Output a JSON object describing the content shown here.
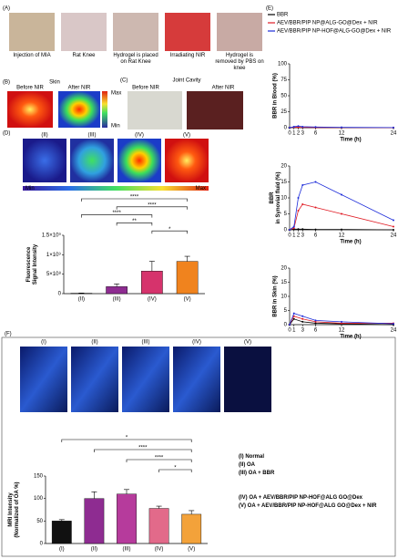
{
  "panel_a": {
    "label": "(A)",
    "captions": [
      "Injection of MIA",
      "Rat Knee",
      "Hydrogel is placed on Rat Knee",
      "Irradiating NIR",
      "Hydrogel is removed by PBS on knee"
    ]
  },
  "panel_b": {
    "label": "(B)",
    "title": "Skin",
    "before": "Before NIR",
    "after": "After NIR",
    "scale_max": "Max",
    "scale_min": "Min"
  },
  "panel_c": {
    "label": "(C)",
    "title": "Joint Cavity",
    "before": "Before NIR",
    "after": "After NIR"
  },
  "panel_d": {
    "label": "(D)",
    "image_labels": [
      "(II)",
      "(III)",
      "(IV)",
      "(V)"
    ],
    "scale_min": "Min",
    "scale_max": "Max",
    "chart": {
      "type": "bar",
      "ylabel": [
        "Fluorescence",
        "Signal Intensity"
      ],
      "categories": [
        "(II)",
        "(III)",
        "(IV)",
        "(V)"
      ],
      "values": [
        10000000,
        180000000,
        580000000,
        830000000
      ],
      "errors": [
        5000000,
        70000000,
        250000000,
        130000000
      ],
      "colors": [
        "#111111",
        "#8e2c91",
        "#d6336c",
        "#f0831e"
      ],
      "ylim": [
        0,
        1500000000
      ],
      "yticks": [
        0,
        {
          "value": 500000000,
          "label": "5×10⁸"
        },
        {
          "value": 1000000000,
          "label": "1×10⁹"
        },
        {
          "value": 1500000000,
          "label": "1.5×10⁹"
        }
      ],
      "significance": [
        {
          "pair": [
            "(II)",
            "(V)"
          ],
          "label": "****"
        },
        {
          "pair": [
            "(III)",
            "(V)"
          ],
          "label": "****"
        },
        {
          "pair": [
            "(II)",
            "(IV)"
          ],
          "label": "****"
        },
        {
          "pair": [
            "(III)",
            "(IV)"
          ],
          "label": "**"
        },
        {
          "pair": [
            "(IV)",
            "(V)"
          ],
          "label": "*"
        }
      ]
    }
  },
  "panel_e": {
    "label": "(E)",
    "legend": [
      {
        "name": "BBR",
        "color": "#000000"
      },
      {
        "name": "AEV/BBR/PIP NP@ALG-GO@Dex + NIR",
        "color": "#e01b24"
      },
      {
        "name": "AEV/BBR/PIP NP-HOF@ALG-GO@Dex + NIR",
        "color": "#1c2bd9"
      }
    ],
    "charts": [
      {
        "type": "line",
        "ylabel": [
          "BBR in Blood (%)"
        ],
        "xlabel": "Time (h)",
        "x": [
          0,
          1,
          2,
          3,
          6,
          12,
          24
        ],
        "xlim": [
          0,
          24
        ],
        "xticks": [
          0,
          1,
          2,
          3,
          6,
          12,
          24
        ],
        "ylim": [
          0,
          100
        ],
        "yticks": [
          0,
          25,
          50,
          75,
          100
        ],
        "series": [
          {
            "values": [
              0,
              0.5,
              0.3,
              0.2,
              0.1,
              0.1,
              0
            ]
          },
          {
            "values": [
              0,
              0.8,
              0.6,
              0.5,
              0.3,
              0.2,
              0.1
            ]
          },
          {
            "values": [
              0,
              1.5,
              2.5,
              1.5,
              1,
              0.5,
              0.2
            ]
          }
        ]
      },
      {
        "type": "line",
        "ylabel": [
          "BBR",
          "in Synovial fluid (%)"
        ],
        "xlabel": "Time (h)",
        "x": [
          0,
          1,
          2,
          3,
          6,
          12,
          24
        ],
        "xlim": [
          0,
          24
        ],
        "xticks": [
          0,
          1,
          2,
          3,
          6,
          12,
          24
        ],
        "ylim": [
          0,
          20
        ],
        "yticks": [
          0,
          5,
          10,
          15,
          20
        ],
        "series": [
          {
            "values": [
              0,
              0.2,
              0.2,
              0.2,
              0.1,
              0.1,
              0
            ]
          },
          {
            "values": [
              0,
              0.5,
              6,
              8,
              7,
              5,
              1
            ]
          },
          {
            "values": [
              0,
              1,
              10,
              14,
              15,
              11,
              3
            ]
          }
        ]
      },
      {
        "type": "line",
        "ylabel": [
          "BBR in Skin (%)"
        ],
        "xlabel": "Time (h)",
        "x": [
          0,
          1,
          3,
          6,
          12,
          24
        ],
        "xlim": [
          0,
          24
        ],
        "xticks": [
          0,
          1,
          3,
          6,
          12,
          24
        ],
        "ylim": [
          0,
          20
        ],
        "yticks": [
          0,
          5,
          10,
          15,
          20
        ],
        "series": [
          {
            "values": [
              0,
              2,
              1,
              0.5,
              0.3,
              0
            ]
          },
          {
            "values": [
              0,
              3,
              2,
              1,
              0.5,
              0.5
            ]
          },
          {
            "values": [
              0,
              4,
              3,
              1.5,
              1,
              0.3
            ]
          }
        ]
      }
    ]
  },
  "panel_f": {
    "label": "(F)",
    "image_labels": [
      "(I)",
      "(II)",
      "(III)",
      "(IV)",
      "(V)"
    ],
    "chart": {
      "type": "bar",
      "ylabel": [
        "MRI Intensity",
        "(Normalized of OA %)"
      ],
      "categories": [
        "(I)",
        "(II)",
        "(III)",
        "(IV)",
        "(V)"
      ],
      "values": [
        50,
        100,
        110,
        78,
        65
      ],
      "errors": [
        3,
        15,
        10,
        5,
        8
      ],
      "colors": [
        "#111111",
        "#8e2c91",
        "#b63b9c",
        "#e26a8a",
        "#f3a23a"
      ],
      "ylim": [
        0,
        150
      ],
      "yticks": [
        0,
        50,
        100,
        150
      ],
      "significance": [
        {
          "pair": [
            "(I)",
            "(V)"
          ],
          "label": "*"
        },
        {
          "pair": [
            "(II)",
            "(V)"
          ],
          "label": "****"
        },
        {
          "pair": [
            "(III)",
            "(V)"
          ],
          "label": "****"
        },
        {
          "pair": [
            "(IV)",
            "(V)"
          ],
          "label": "*"
        }
      ]
    },
    "legend": [
      "(I) Normal",
      "(II) OA",
      "(III) OA + BBR",
      "(IV) OA + AEV/BBR/PIP NP-HOF@ALG GO@Dex",
      "(V) OA + AEV/BBR/PIP NP-HOF@ALG GO@Dex + NIR"
    ]
  }
}
